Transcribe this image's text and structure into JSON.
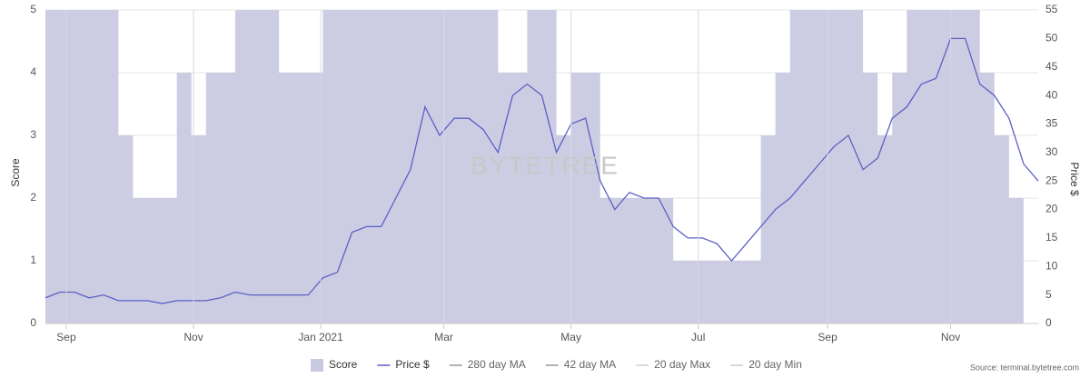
{
  "chart_data": {
    "type": "area-line",
    "watermark": "BYTETREE",
    "source": "Source: terminal.bytetree.com",
    "y_label": "Score",
    "y2_label": "Price $",
    "x": [
      0,
      7,
      14,
      21,
      28,
      35,
      42,
      49,
      56,
      63,
      70,
      77,
      84,
      91,
      98,
      105,
      112,
      119,
      126,
      133,
      140,
      147,
      154,
      161,
      168,
      175,
      182,
      189,
      196,
      203,
      210,
      217,
      224,
      231,
      238,
      245,
      252,
      259,
      266,
      273,
      280,
      287,
      294,
      301,
      308,
      315,
      322,
      329,
      336,
      343,
      350,
      357,
      364,
      371,
      378,
      385,
      392,
      399,
      406,
      413,
      420,
      427,
      434,
      441,
      448,
      455,
      462,
      469,
      476
    ],
    "series": [
      {
        "name": "Score",
        "color": "#c9cae1",
        "values": [
          5,
          5,
          5,
          5,
          5,
          3,
          2,
          2,
          2,
          4,
          3,
          4,
          4,
          5,
          5,
          5,
          4,
          4,
          4,
          5,
          5,
          5,
          5,
          5,
          5,
          5,
          5,
          5,
          5,
          5,
          5,
          4,
          4,
          5,
          5,
          3,
          4,
          4,
          2,
          2,
          2,
          2,
          2,
          1,
          1,
          1,
          1,
          1,
          1,
          3,
          4,
          5,
          5,
          5,
          5,
          5,
          4,
          3,
          4,
          5,
          5,
          5,
          5,
          5,
          4,
          3,
          2,
          0,
          0
        ]
      },
      {
        "name": "Price $",
        "color": "#5c5fc4",
        "axis": "y2",
        "values": [
          4.5,
          5.5,
          5.5,
          4.5,
          5,
          4,
          4,
          4,
          3.5,
          4,
          4,
          4,
          4.5,
          5.5,
          5,
          5,
          5,
          5,
          5,
          8,
          9,
          16,
          17,
          17,
          22,
          27,
          38,
          33,
          36,
          36,
          34,
          30,
          40,
          42,
          40,
          30,
          35,
          36,
          25,
          20,
          23,
          22,
          22,
          17,
          15,
          15,
          14,
          11,
          14,
          17,
          20,
          22,
          25,
          28,
          31,
          33,
          27,
          29,
          36,
          38,
          42,
          43,
          50,
          50,
          42,
          40,
          36,
          28,
          25
        ]
      }
    ],
    "hidden_series": [
      {
        "name": "280 day MA",
        "color": "#999999"
      },
      {
        "name": "42 day MA",
        "color": "#999999"
      },
      {
        "name": "20 day Max",
        "color": "#cccccc"
      },
      {
        "name": "20 day Min",
        "color": "#cccccc"
      }
    ],
    "xlim": [
      0,
      476
    ],
    "xticks": [
      {
        "value": 10,
        "label": "Sep"
      },
      {
        "value": 71,
        "label": "Nov"
      },
      {
        "value": 132,
        "label": "Jan 2021"
      },
      {
        "value": 191,
        "label": "Mar"
      },
      {
        "value": 252,
        "label": "May"
      },
      {
        "value": 313,
        "label": "Jul"
      },
      {
        "value": 375,
        "label": "Sep"
      },
      {
        "value": 434,
        "label": "Nov"
      }
    ],
    "ylim": [
      0,
      5
    ],
    "yticks": [
      0,
      1,
      2,
      3,
      4,
      5
    ],
    "y2lim": [
      0,
      55
    ],
    "y2ticks": [
      0,
      5,
      10,
      15,
      20,
      25,
      30,
      35,
      40,
      45,
      50,
      55
    ],
    "grid": true
  }
}
